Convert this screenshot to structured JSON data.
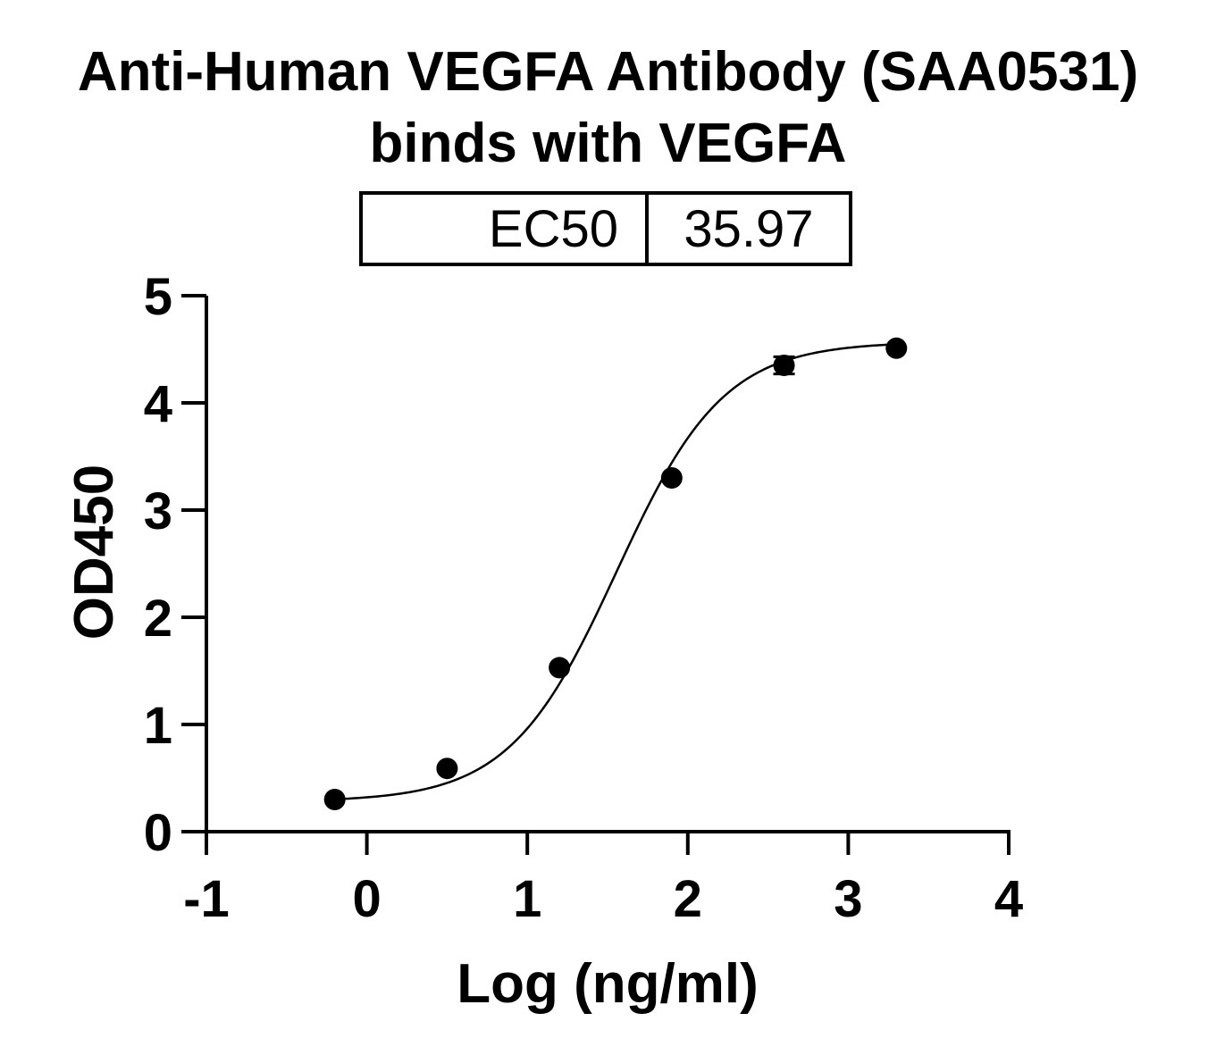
{
  "title_line1": "Anti-Human VEGFA Antibody (SAA0531)",
  "title_line2": "binds with VEGFA",
  "ec50_table": {
    "label": "EC50",
    "value": "35.97"
  },
  "chart_data": {
    "type": "scatter",
    "title": "Anti-Human VEGFA Antibody (SAA0531) binds with VEGFA",
    "xlabel": "Log (ng/ml)",
    "ylabel": "OD450",
    "xlim": [
      -1,
      4
    ],
    "ylim": [
      0,
      5
    ],
    "x_ticks": [
      "-1",
      "0",
      "1",
      "2",
      "3",
      "4"
    ],
    "y_ticks": [
      "0",
      "1",
      "2",
      "3",
      "4",
      "5"
    ],
    "grid": false,
    "points": [
      {
        "x": -0.2,
        "y": 0.3,
        "err": 0.0
      },
      {
        "x": 0.5,
        "y": 0.59,
        "err": 0.0
      },
      {
        "x": 1.2,
        "y": 1.53,
        "err": 0.0
      },
      {
        "x": 1.9,
        "y": 3.3,
        "err": 0.0
      },
      {
        "x": 2.6,
        "y": 4.35,
        "err": 0.08
      },
      {
        "x": 3.3,
        "y": 4.51,
        "err": 0.0
      }
    ],
    "fit": {
      "model": "4PL sigmoid",
      "bottom": 0.28,
      "top": 4.57,
      "logEC50": 1.556,
      "hill": 1.3
    },
    "marker_color": "#000000",
    "line_color": "#000000"
  }
}
